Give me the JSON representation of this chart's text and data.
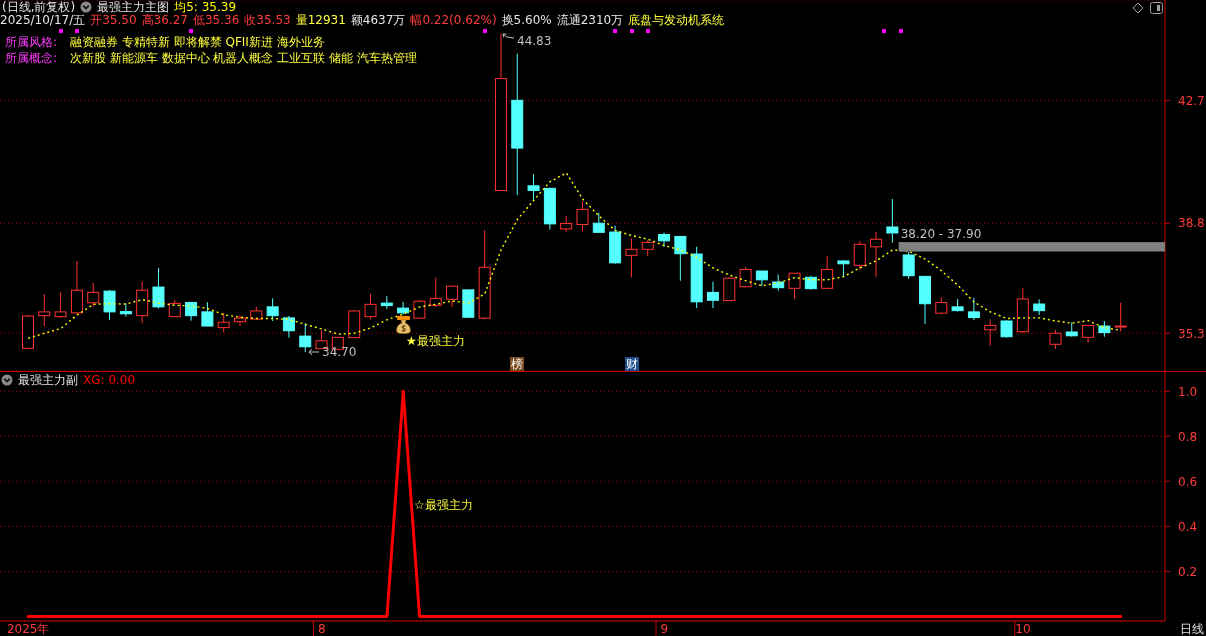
{
  "chart_data": [
    {
      "type": "candlestick",
      "title": "最强主力主图",
      "subtitle": "(日线,前复权)",
      "categories": [
        null,
        null,
        null,
        null,
        null,
        null,
        null,
        null,
        null,
        null,
        null,
        null,
        null,
        null,
        null,
        null,
        null,
        null,
        null,
        null,
        null,
        null,
        null,
        null,
        null,
        null,
        null,
        null,
        null,
        null,
        null,
        null,
        null,
        null,
        null,
        null,
        null,
        null,
        null,
        null,
        null,
        null,
        null,
        null,
        null,
        null,
        null,
        null,
        null,
        null,
        null,
        null,
        null,
        null,
        null,
        null,
        null,
        null,
        null,
        null,
        null,
        null,
        null,
        null,
        null,
        null,
        null,
        null
      ],
      "ohlc": [
        [
          34.82,
          35.88,
          34.8,
          35.85
        ],
        [
          35.86,
          36.55,
          35.53,
          35.98
        ],
        [
          35.83,
          36.61,
          35.78,
          35.98
        ],
        [
          35.95,
          37.6,
          35.93,
          36.67
        ],
        [
          36.27,
          36.9,
          36.14,
          36.6
        ],
        [
          36.64,
          36.68,
          35.72,
          35.98
        ],
        [
          35.99,
          36.25,
          35.83,
          35.92
        ],
        [
          35.86,
          36.93,
          35.62,
          36.67
        ],
        [
          36.77,
          37.37,
          36.09,
          36.14
        ],
        [
          35.83,
          36.36,
          35.83,
          36.25
        ],
        [
          36.28,
          36.3,
          35.7,
          35.86
        ],
        [
          35.98,
          36.29,
          35.53,
          35.53
        ],
        [
          35.48,
          35.94,
          35.32,
          35.65
        ],
        [
          35.67,
          35.87,
          35.53,
          35.78
        ],
        [
          35.75,
          36.14,
          35.75,
          36.01
        ],
        [
          36.14,
          36.41,
          35.69,
          35.86
        ],
        [
          35.79,
          35.85,
          35.16,
          35.38
        ],
        [
          35.21,
          35.62,
          34.7,
          34.87
        ],
        [
          34.81,
          35.4,
          34.81,
          35.06
        ],
        [
          34.79,
          35.17,
          34.79,
          35.17
        ],
        [
          35.16,
          36.04,
          35.16,
          36.01
        ],
        [
          35.83,
          36.55,
          35.74,
          36.22
        ],
        [
          36.26,
          36.48,
          36.08,
          36.18
        ],
        [
          36.1,
          36.3,
          35.9,
          35.95
        ],
        [
          35.78,
          36.35,
          35.76,
          36.32
        ],
        [
          36.19,
          37.07,
          36.13,
          36.41
        ],
        [
          36.38,
          36.8,
          36.14,
          36.8
        ],
        [
          36.68,
          36.68,
          35.81,
          35.81
        ],
        [
          35.78,
          38.58,
          35.74,
          37.4
        ],
        [
          39.84,
          44.83,
          39.84,
          43.4
        ],
        [
          42.71,
          44.19,
          39.7,
          41.19
        ],
        [
          39.99,
          40.36,
          39.53,
          39.84
        ],
        [
          39.91,
          39.91,
          38.6,
          38.78
        ],
        [
          38.62,
          39.03,
          38.51,
          38.79
        ],
        [
          38.76,
          39.5,
          38.54,
          39.24
        ],
        [
          38.8,
          39.14,
          38.51,
          38.51
        ],
        [
          38.52,
          38.72,
          37.51,
          37.54
        ],
        [
          37.78,
          38.32,
          37.08,
          37.97
        ],
        [
          37.97,
          38.26,
          37.76,
          38.19
        ],
        [
          38.44,
          38.5,
          38.05,
          38.24
        ],
        [
          38.38,
          38.38,
          36.97,
          37.83
        ],
        [
          37.82,
          38.05,
          36.1,
          36.3
        ],
        [
          36.6,
          36.94,
          36.1,
          36.35
        ],
        [
          36.34,
          37.08,
          36.34,
          37.05
        ],
        [
          36.78,
          37.4,
          36.76,
          37.33
        ],
        [
          37.28,
          37.28,
          36.8,
          37.0
        ],
        [
          36.93,
          37.17,
          36.65,
          36.75
        ],
        [
          36.73,
          37.21,
          36.4,
          37.21
        ],
        [
          37.08,
          37.13,
          36.68,
          36.72
        ],
        [
          36.73,
          37.75,
          36.7,
          37.33
        ],
        [
          37.6,
          37.63,
          37.08,
          37.51
        ],
        [
          37.46,
          38.23,
          37.33,
          38.13
        ],
        [
          38.05,
          38.52,
          37.1,
          38.29
        ],
        [
          38.68,
          39.57,
          38.18,
          38.49
        ],
        [
          37.79,
          37.89,
          37.03,
          37.13
        ],
        [
          37.11,
          37.11,
          35.6,
          36.24
        ],
        [
          35.94,
          36.45,
          35.9,
          36.28
        ],
        [
          36.14,
          36.39,
          35.99,
          36.02
        ],
        [
          35.98,
          36.42,
          35.72,
          35.8
        ],
        [
          35.41,
          35.74,
          34.91,
          35.55
        ],
        [
          35.69,
          35.72,
          35.16,
          35.19
        ],
        [
          35.35,
          36.73,
          35.3,
          36.39
        ],
        [
          36.23,
          36.38,
          35.88,
          36.02
        ],
        [
          34.95,
          35.4,
          34.81,
          35.3
        ],
        [
          35.34,
          35.65,
          35.19,
          35.22
        ],
        [
          35.17,
          35.55,
          35.0,
          35.55
        ],
        [
          35.53,
          35.69,
          35.19,
          35.32
        ],
        [
          35.5,
          36.27,
          35.36,
          35.53
        ]
      ],
      "colors": [
        "#ff3232",
        "#ff3232",
        "#ff3232",
        "#ff3232",
        "#ff3232",
        "#54ffff",
        "#54ffff",
        "#ff3232",
        "#54ffff",
        "#ff3232",
        "#54ffff",
        "#54ffff",
        "#ff3232",
        "#ff3232",
        "#ff3232",
        "#54ffff",
        "#54ffff",
        "#54ffff",
        "#ff3232",
        "#ff3232",
        "#ff3232",
        "#ff3232",
        "#54ffff",
        "#54ffff",
        "#ff3232",
        "#ff3232",
        "#ff3232",
        "#54ffff",
        "#ff3232",
        "#ff3232",
        "#54ffff",
        "#54ffff",
        "#54ffff",
        "#ff3232",
        "#ff3232",
        "#54ffff",
        "#54ffff",
        "#ff3232",
        "#ff3232",
        "#54ffff",
        "#54ffff",
        "#54ffff",
        "#54ffff",
        "#ff3232",
        "#ff3232",
        "#54ffff",
        "#54ffff",
        "#ff3232",
        "#54ffff",
        "#ff3232",
        "#54ffff",
        "#ff3232",
        "#ff3232",
        "#54ffff",
        "#54ffff",
        "#54ffff",
        "#ff3232",
        "#54ffff",
        "#54ffff",
        "#ff3232",
        "#54ffff",
        "#ff3232",
        "#54ffff",
        "#ff3232",
        "#54ffff",
        "#ff3232",
        "#54ffff",
        "#ff3232"
      ],
      "series": [
        {
          "type": "line",
          "name": "均5: 35.39",
          "color": "#ffff00",
          "line_style": "dotted",
          "marker": "none",
          "values": [
            35.14,
            35.3,
            35.45,
            35.88,
            36.22,
            36.24,
            36.23,
            36.37,
            36.26,
            36.19,
            36.17,
            36.09,
            35.89,
            35.81,
            35.77,
            35.77,
            35.74,
            35.58,
            35.44,
            35.27,
            35.3,
            35.47,
            35.73,
            35.91,
            36.14,
            36.22,
            36.33,
            36.26,
            36.55,
            37.96,
            38.92,
            39.53,
            40.12,
            40.4,
            39.57,
            39.03,
            38.57,
            38.41,
            38.29,
            38.09,
            37.95,
            37.71,
            37.38,
            37.15,
            36.97,
            36.81,
            36.9,
            37.07,
            37.0,
            37.0,
            37.1,
            37.38,
            37.6,
            37.95,
            37.91,
            37.66,
            37.29,
            36.83,
            36.29,
            35.98,
            35.77,
            35.79,
            35.79,
            35.69,
            35.62,
            35.7,
            35.48,
            35.39
          ]
        }
      ],
      "ylim": [
        34.1,
        45.9
      ],
      "yticks": [
        42.7,
        38.8,
        35.3
      ],
      "grid": "y",
      "tick_labels": "y",
      "bands": [
        {
          "axis": "y",
          "from": 37.9,
          "to": 38.2,
          "label": "38.20 - 37.90",
          "color": "#808080"
        }
      ],
      "annotations": [
        "2025/10/17/五",
        "开35.50",
        "高36.27",
        "低35.36",
        "收35.53",
        "量12931",
        "额4637万",
        "幅0.22(0.62%)",
        "换5.60%",
        "流通2310万",
        "底盘与发动机系统",
        "所属风格:",
        "融资融券 专精特新 即将解禁 QFII新进 海外业务",
        "所属概念:",
        "次新股 新能源车 数据中心 机器人概念 工业互联 储能 汽车热管理",
        "44.83",
        "34.70",
        "★最强主力",
        "榜",
        "财"
      ]
    },
    {
      "type": "line",
      "title": "最强主力副",
      "categories": [
        "2025年",
        null,
        null,
        null,
        null,
        null,
        null,
        null,
        null,
        null,
        null,
        null,
        null,
        null,
        null,
        null,
        null,
        null,
        "8",
        null,
        null,
        null,
        null,
        null,
        null,
        null,
        null,
        null,
        null,
        null,
        null,
        null,
        null,
        null,
        null,
        null,
        null,
        null,
        null,
        "9",
        null,
        null,
        null,
        null,
        null,
        null,
        null,
        null,
        null,
        null,
        null,
        null,
        null,
        null,
        null,
        null,
        null,
        null,
        null,
        null,
        null,
        "10",
        null,
        null,
        null,
        null,
        null,
        null
      ],
      "series": [
        {
          "name": "XG: 0.00",
          "color": "#ff0000",
          "values": [
            0,
            0,
            0,
            0,
            0,
            0,
            0,
            0,
            0,
            0,
            0,
            0,
            0,
            0,
            0,
            0,
            0,
            0,
            0,
            0,
            0,
            0,
            0,
            1,
            0,
            0,
            0,
            0,
            0,
            0,
            0,
            0,
            0,
            0,
            0,
            0,
            0,
            0,
            0,
            0,
            0,
            0,
            0,
            0,
            0,
            0,
            0,
            0,
            0,
            0,
            0,
            0,
            0,
            0,
            0,
            0,
            0,
            0,
            0,
            0,
            0,
            0,
            0,
            0,
            0,
            0,
            0,
            0
          ]
        }
      ],
      "marker": "none",
      "ylim": [
        -0.02,
        1.09
      ],
      "yticks": [
        {
          "value": 1,
          "label": "1.0"
        },
        0.8,
        0.6,
        0.4,
        0.2
      ],
      "grid": "y",
      "annotations": [
        "☆最强主力",
        "日线"
      ]
    }
  ]
}
